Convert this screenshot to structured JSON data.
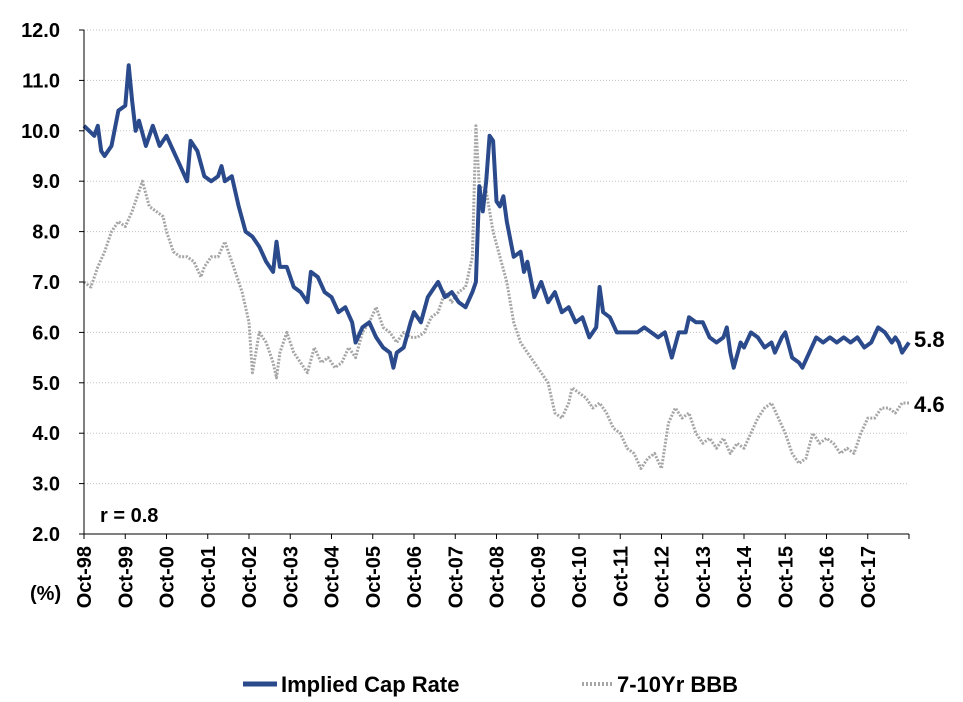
{
  "chart_data": {
    "type": "line",
    "unit_label": "(%)",
    "correlation_label": "r =  0.8",
    "ylim": [
      2.0,
      12.0
    ],
    "y_ticks": [
      "2.0",
      "3.0",
      "4.0",
      "5.0",
      "6.0",
      "7.0",
      "8.0",
      "9.0",
      "10.0",
      "11.0",
      "12.0"
    ],
    "x_ticks": [
      "Oct-98",
      "Oct-99",
      "Oct-00",
      "Oct-01",
      "Oct-02",
      "Oct-03",
      "Oct-04",
      "Oct-05",
      "Oct-06",
      "Oct-07",
      "Oct-08",
      "Oct-09",
      "Oct-10",
      "Oct-11",
      "Oct-12",
      "Oct-13",
      "Oct-14",
      "Oct-15",
      "Oct-16",
      "Oct-17"
    ],
    "x_range": [
      "1998-10",
      "2018-10"
    ],
    "grid": true,
    "legend_position": "bottom",
    "series": [
      {
        "name": "Implied Cap Rate",
        "color": "#2B4A8B",
        "end_label": "5.8",
        "points": [
          [
            "1998-10",
            10.1
          ],
          [
            "1999-01",
            9.9
          ],
          [
            "1999-02",
            10.1
          ],
          [
            "1999-03",
            9.6
          ],
          [
            "1999-04",
            9.5
          ],
          [
            "1999-06",
            9.7
          ],
          [
            "1999-08",
            10.4
          ],
          [
            "1999-10",
            10.5
          ],
          [
            "1999-11",
            11.3
          ],
          [
            "1999-12",
            10.6
          ],
          [
            "2000-01",
            10.0
          ],
          [
            "2000-02",
            10.2
          ],
          [
            "2000-04",
            9.7
          ],
          [
            "2000-06",
            10.1
          ],
          [
            "2000-08",
            9.7
          ],
          [
            "2000-10",
            9.9
          ],
          [
            "2000-12",
            9.6
          ],
          [
            "2001-02",
            9.3
          ],
          [
            "2001-04",
            9.0
          ],
          [
            "2001-05",
            9.8
          ],
          [
            "2001-07",
            9.6
          ],
          [
            "2001-09",
            9.1
          ],
          [
            "2001-11",
            9.0
          ],
          [
            "2002-01",
            9.1
          ],
          [
            "2002-02",
            9.3
          ],
          [
            "2002-03",
            9.0
          ],
          [
            "2002-05",
            9.1
          ],
          [
            "2002-07",
            8.5
          ],
          [
            "2002-09",
            8.0
          ],
          [
            "2002-11",
            7.9
          ],
          [
            "2003-01",
            7.7
          ],
          [
            "2003-03",
            7.4
          ],
          [
            "2003-05",
            7.2
          ],
          [
            "2003-06",
            7.8
          ],
          [
            "2003-07",
            7.3
          ],
          [
            "2003-09",
            7.3
          ],
          [
            "2003-11",
            6.9
          ],
          [
            "2004-01",
            6.8
          ],
          [
            "2004-03",
            6.6
          ],
          [
            "2004-04",
            7.2
          ],
          [
            "2004-06",
            7.1
          ],
          [
            "2004-08",
            6.8
          ],
          [
            "2004-10",
            6.7
          ],
          [
            "2004-12",
            6.4
          ],
          [
            "2005-02",
            6.5
          ],
          [
            "2005-04",
            6.2
          ],
          [
            "2005-05",
            5.8
          ],
          [
            "2005-07",
            6.1
          ],
          [
            "2005-09",
            6.2
          ],
          [
            "2005-11",
            5.9
          ],
          [
            "2006-01",
            5.7
          ],
          [
            "2006-03",
            5.6
          ],
          [
            "2006-04",
            5.3
          ],
          [
            "2006-05",
            5.6
          ],
          [
            "2006-07",
            5.7
          ],
          [
            "2006-09",
            6.2
          ],
          [
            "2006-10",
            6.4
          ],
          [
            "2006-12",
            6.2
          ],
          [
            "2007-02",
            6.7
          ],
          [
            "2007-04",
            6.9
          ],
          [
            "2007-05",
            7.0
          ],
          [
            "2007-07",
            6.7
          ],
          [
            "2007-09",
            6.8
          ],
          [
            "2007-11",
            6.6
          ],
          [
            "2008-01",
            6.5
          ],
          [
            "2008-03",
            6.8
          ],
          [
            "2008-04",
            7.0
          ],
          [
            "2008-05",
            8.9
          ],
          [
            "2008-06",
            8.4
          ],
          [
            "2008-07",
            9.0
          ],
          [
            "2008-08",
            9.9
          ],
          [
            "2008-09",
            9.8
          ],
          [
            "2008-10",
            8.6
          ],
          [
            "2008-11",
            8.5
          ],
          [
            "2008-12",
            8.7
          ],
          [
            "2009-01",
            8.2
          ],
          [
            "2009-03",
            7.5
          ],
          [
            "2009-05",
            7.6
          ],
          [
            "2009-06",
            7.2
          ],
          [
            "2009-07",
            7.4
          ],
          [
            "2009-09",
            6.7
          ],
          [
            "2009-11",
            7.0
          ],
          [
            "2010-01",
            6.6
          ],
          [
            "2010-03",
            6.8
          ],
          [
            "2010-05",
            6.4
          ],
          [
            "2010-07",
            6.5
          ],
          [
            "2010-09",
            6.2
          ],
          [
            "2010-11",
            6.3
          ],
          [
            "2011-01",
            5.9
          ],
          [
            "2011-03",
            6.1
          ],
          [
            "2011-04",
            6.9
          ],
          [
            "2011-05",
            6.4
          ],
          [
            "2011-07",
            6.3
          ],
          [
            "2011-09",
            6.0
          ],
          [
            "2011-11",
            6.0
          ],
          [
            "2012-01",
            6.0
          ],
          [
            "2012-03",
            6.0
          ],
          [
            "2012-05",
            6.1
          ],
          [
            "2012-07",
            6.0
          ],
          [
            "2012-09",
            5.9
          ],
          [
            "2012-11",
            6.0
          ],
          [
            "2013-01",
            5.5
          ],
          [
            "2013-03",
            6.0
          ],
          [
            "2013-05",
            6.0
          ],
          [
            "2013-06",
            6.3
          ],
          [
            "2013-08",
            6.2
          ],
          [
            "2013-10",
            6.2
          ],
          [
            "2013-12",
            5.9
          ],
          [
            "2014-02",
            5.8
          ],
          [
            "2014-04",
            5.9
          ],
          [
            "2014-05",
            6.1
          ],
          [
            "2014-06",
            5.6
          ],
          [
            "2014-07",
            5.3
          ],
          [
            "2014-09",
            5.8
          ],
          [
            "2014-10",
            5.7
          ],
          [
            "2014-12",
            6.0
          ],
          [
            "2015-02",
            5.9
          ],
          [
            "2015-04",
            5.7
          ],
          [
            "2015-06",
            5.8
          ],
          [
            "2015-07",
            5.6
          ],
          [
            "2015-09",
            5.9
          ],
          [
            "2015-10",
            6.0
          ],
          [
            "2015-12",
            5.5
          ],
          [
            "2016-02",
            5.4
          ],
          [
            "2016-03",
            5.3
          ],
          [
            "2016-05",
            5.6
          ],
          [
            "2016-07",
            5.9
          ],
          [
            "2016-09",
            5.8
          ],
          [
            "2016-11",
            5.9
          ],
          [
            "2017-01",
            5.8
          ],
          [
            "2017-03",
            5.9
          ],
          [
            "2017-05",
            5.8
          ],
          [
            "2017-07",
            5.9
          ],
          [
            "2017-09",
            5.7
          ],
          [
            "2017-11",
            5.8
          ],
          [
            "2018-01",
            6.1
          ],
          [
            "2018-03",
            6.0
          ],
          [
            "2018-05",
            5.8
          ],
          [
            "2018-06",
            5.9
          ],
          [
            "2018-07",
            5.8
          ],
          [
            "2018-08",
            5.6
          ],
          [
            "2018-10",
            5.8
          ]
        ]
      },
      {
        "name": "7-10Yr BBB",
        "color": "#A6A6A6",
        "end_label": "4.6",
        "points": [
          [
            "1998-10",
            7.0
          ],
          [
            "1998-12",
            6.9
          ],
          [
            "1999-02",
            7.3
          ],
          [
            "1999-04",
            7.6
          ],
          [
            "1999-06",
            8.0
          ],
          [
            "1999-08",
            8.2
          ],
          [
            "1999-10",
            8.1
          ],
          [
            "1999-12",
            8.4
          ],
          [
            "2000-02",
            8.8
          ],
          [
            "2000-03",
            9.0
          ],
          [
            "2000-05",
            8.5
          ],
          [
            "2000-07",
            8.4
          ],
          [
            "2000-09",
            8.3
          ],
          [
            "2000-10",
            8.0
          ],
          [
            "2000-12",
            7.6
          ],
          [
            "2001-02",
            7.5
          ],
          [
            "2001-04",
            7.5
          ],
          [
            "2001-06",
            7.4
          ],
          [
            "2001-08",
            7.1
          ],
          [
            "2001-09",
            7.3
          ],
          [
            "2001-11",
            7.5
          ],
          [
            "2002-01",
            7.5
          ],
          [
            "2002-03",
            7.8
          ],
          [
            "2002-05",
            7.4
          ],
          [
            "2002-06",
            7.2
          ],
          [
            "2002-08",
            6.8
          ],
          [
            "2002-10",
            6.2
          ],
          [
            "2002-11",
            5.2
          ],
          [
            "2003-01",
            6.0
          ],
          [
            "2003-03",
            5.8
          ],
          [
            "2003-05",
            5.4
          ],
          [
            "2003-06",
            5.1
          ],
          [
            "2003-07",
            5.6
          ],
          [
            "2003-09",
            6.0
          ],
          [
            "2003-11",
            5.6
          ],
          [
            "2004-01",
            5.4
          ],
          [
            "2004-03",
            5.2
          ],
          [
            "2004-05",
            5.7
          ],
          [
            "2004-07",
            5.4
          ],
          [
            "2004-09",
            5.5
          ],
          [
            "2004-11",
            5.3
          ],
          [
            "2005-01",
            5.4
          ],
          [
            "2005-03",
            5.7
          ],
          [
            "2005-05",
            5.5
          ],
          [
            "2005-07",
            6.0
          ],
          [
            "2005-09",
            6.2
          ],
          [
            "2005-11",
            6.5
          ],
          [
            "2006-01",
            6.1
          ],
          [
            "2006-03",
            6.0
          ],
          [
            "2006-05",
            5.8
          ],
          [
            "2006-07",
            6.0
          ],
          [
            "2006-09",
            5.9
          ],
          [
            "2006-11",
            5.9
          ],
          [
            "2007-01",
            6.0
          ],
          [
            "2007-03",
            6.3
          ],
          [
            "2007-05",
            6.4
          ],
          [
            "2007-07",
            6.8
          ],
          [
            "2007-09",
            6.6
          ],
          [
            "2007-11",
            6.8
          ],
          [
            "2008-01",
            6.9
          ],
          [
            "2008-03",
            7.5
          ],
          [
            "2008-04",
            10.1
          ],
          [
            "2008-05",
            8.9
          ],
          [
            "2008-07",
            8.8
          ],
          [
            "2008-09",
            8.0
          ],
          [
            "2008-11",
            7.5
          ],
          [
            "2009-01",
            7.0
          ],
          [
            "2009-03",
            6.2
          ],
          [
            "2009-05",
            5.8
          ],
          [
            "2009-07",
            5.6
          ],
          [
            "2009-09",
            5.4
          ],
          [
            "2009-11",
            5.2
          ],
          [
            "2010-01",
            5.0
          ],
          [
            "2010-03",
            4.4
          ],
          [
            "2010-05",
            4.3
          ],
          [
            "2010-07",
            4.6
          ],
          [
            "2010-08",
            4.9
          ],
          [
            "2010-10",
            4.8
          ],
          [
            "2010-12",
            4.7
          ],
          [
            "2011-02",
            4.5
          ],
          [
            "2011-04",
            4.6
          ],
          [
            "2011-06",
            4.4
          ],
          [
            "2011-08",
            4.1
          ],
          [
            "2011-10",
            4.0
          ],
          [
            "2011-12",
            3.7
          ],
          [
            "2012-02",
            3.6
          ],
          [
            "2012-04",
            3.3
          ],
          [
            "2012-06",
            3.5
          ],
          [
            "2012-08",
            3.6
          ],
          [
            "2012-10",
            3.3
          ],
          [
            "2012-12",
            4.2
          ],
          [
            "2013-02",
            4.5
          ],
          [
            "2013-04",
            4.3
          ],
          [
            "2013-06",
            4.4
          ],
          [
            "2013-08",
            4.0
          ],
          [
            "2013-10",
            3.8
          ],
          [
            "2013-12",
            3.9
          ],
          [
            "2014-02",
            3.7
          ],
          [
            "2014-04",
            3.9
          ],
          [
            "2014-06",
            3.6
          ],
          [
            "2014-08",
            3.8
          ],
          [
            "2014-10",
            3.7
          ],
          [
            "2014-12",
            4.0
          ],
          [
            "2015-02",
            4.3
          ],
          [
            "2015-04",
            4.5
          ],
          [
            "2015-06",
            4.6
          ],
          [
            "2015-08",
            4.3
          ],
          [
            "2015-10",
            4.0
          ],
          [
            "2015-12",
            3.6
          ],
          [
            "2016-02",
            3.4
          ],
          [
            "2016-04",
            3.5
          ],
          [
            "2016-06",
            4.0
          ],
          [
            "2016-08",
            3.8
          ],
          [
            "2016-10",
            3.9
          ],
          [
            "2016-12",
            3.8
          ],
          [
            "2017-02",
            3.6
          ],
          [
            "2017-04",
            3.7
          ],
          [
            "2017-06",
            3.6
          ],
          [
            "2017-08",
            4.0
          ],
          [
            "2017-10",
            4.3
          ],
          [
            "2017-12",
            4.3
          ],
          [
            "2018-02",
            4.5
          ],
          [
            "2018-04",
            4.5
          ],
          [
            "2018-06",
            4.4
          ],
          [
            "2018-08",
            4.6
          ],
          [
            "2018-10",
            4.6
          ]
        ]
      }
    ]
  }
}
